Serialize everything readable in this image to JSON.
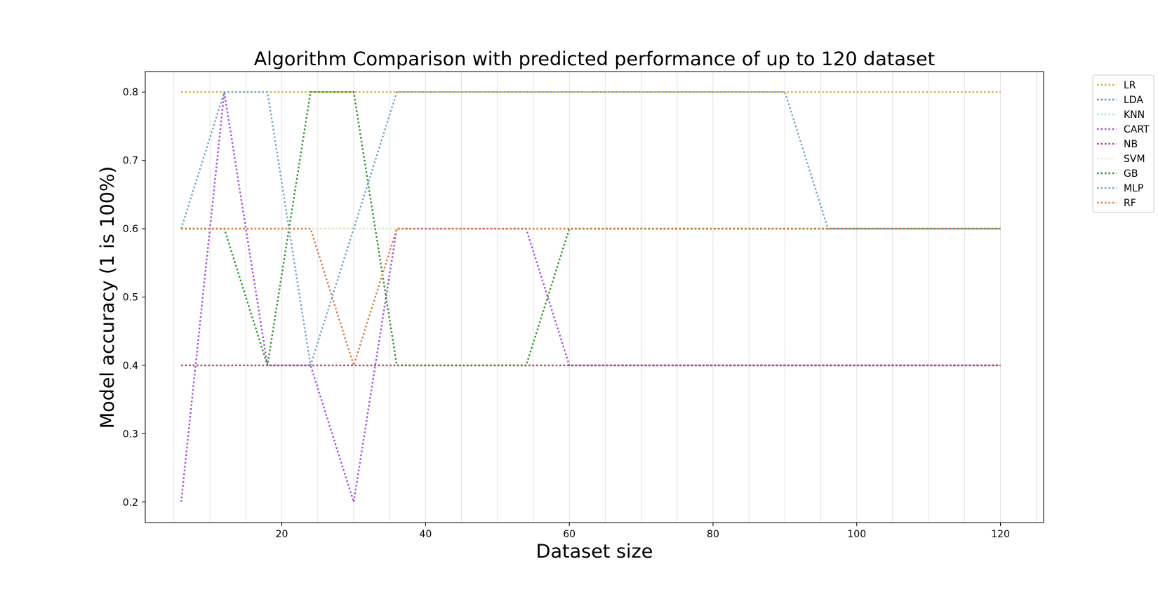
{
  "chart_data": {
    "type": "line",
    "title": "Algorithm Comparison with predicted performance of up to 120 dataset",
    "xlabel": "Dataset size",
    "ylabel": "Model accuracy (1 is 100%)",
    "xlim": [
      1,
      126
    ],
    "ylim": [
      0.17,
      0.83
    ],
    "xticks": [
      20,
      40,
      60,
      80,
      100,
      120
    ],
    "yticks": [
      0.2,
      0.3,
      0.4,
      0.5,
      0.6,
      0.7,
      0.8
    ],
    "vertical_grid_every": 5,
    "grid": "vertical",
    "legend_position": "outside-right",
    "line_style": "dotted",
    "x": [
      6,
      12,
      18,
      24,
      30,
      36,
      42,
      48,
      54,
      60,
      66,
      72,
      78,
      84,
      90,
      96,
      102,
      108,
      114,
      120
    ],
    "series": [
      {
        "name": "LR",
        "color": "#dcb12c",
        "values": [
          0.8,
          0.8,
          0.8,
          0.8,
          0.8,
          0.8,
          0.8,
          0.8,
          0.8,
          0.8,
          0.8,
          0.8,
          0.8,
          0.8,
          0.8,
          0.8,
          0.8,
          0.8,
          0.8,
          0.8
        ]
      },
      {
        "name": "LDA",
        "color": "#4f8fd6",
        "values": [
          0.6,
          0.6,
          0.6,
          0.6,
          0.6,
          0.6,
          0.6,
          0.6,
          0.6,
          0.6,
          0.6,
          0.6,
          0.6,
          0.6,
          0.6,
          0.6,
          0.6,
          0.6,
          0.6,
          0.6
        ]
      },
      {
        "name": "KNN",
        "color": "#8ff0e0",
        "values": [
          0.6,
          0.6,
          0.6,
          0.6,
          0.6,
          0.6,
          0.6,
          0.6,
          0.6,
          0.6,
          0.6,
          0.6,
          0.6,
          0.6,
          0.6,
          0.6,
          0.6,
          0.6,
          0.6,
          0.6
        ]
      },
      {
        "name": "CART",
        "color": "#b04be6",
        "values": [
          0.2,
          0.8,
          0.4,
          0.4,
          0.2,
          0.6,
          0.6,
          0.6,
          0.6,
          0.4,
          0.4,
          0.4,
          0.4,
          0.4,
          0.4,
          0.4,
          0.4,
          0.4,
          0.4,
          0.4
        ]
      },
      {
        "name": "NB",
        "color": "#b03a7a",
        "values": [
          0.4,
          0.4,
          0.4,
          0.4,
          0.4,
          0.4,
          0.4,
          0.4,
          0.4,
          0.4,
          0.4,
          0.4,
          0.4,
          0.4,
          0.4,
          0.4,
          0.4,
          0.4,
          0.4,
          0.4
        ]
      },
      {
        "name": "SVM",
        "color": "#eeeec8",
        "values": [
          0.6,
          0.6,
          0.6,
          0.6,
          0.6,
          0.6,
          0.6,
          0.6,
          0.6,
          0.6,
          0.6,
          0.6,
          0.6,
          0.6,
          0.6,
          0.6,
          0.6,
          0.6,
          0.6,
          0.6
        ]
      },
      {
        "name": "GB",
        "color": "#2a9a2a",
        "values": [
          0.6,
          0.6,
          0.4,
          0.8,
          0.8,
          0.4,
          0.4,
          0.4,
          0.4,
          0.6,
          0.6,
          0.6,
          0.6,
          0.6,
          0.6,
          0.6,
          0.6,
          0.6,
          0.6,
          0.6
        ]
      },
      {
        "name": "MLP",
        "color": "#6aabc8",
        "values": [
          0.6,
          0.8,
          0.8,
          0.4,
          0.6,
          0.8,
          0.8,
          0.8,
          0.8,
          0.8,
          0.8,
          0.8,
          0.8,
          0.8,
          0.8,
          0.6,
          0.6,
          0.6,
          0.6,
          0.6
        ]
      },
      {
        "name": "RF",
        "color": "#e07b39",
        "values": [
          0.6,
          0.6,
          0.6,
          0.6,
          0.4,
          0.6,
          0.6,
          0.6,
          0.6,
          0.6,
          0.6,
          0.6,
          0.6,
          0.6,
          0.6,
          0.6,
          0.6,
          0.6,
          0.6,
          0.6
        ]
      }
    ],
    "extra_lines": [
      {
        "color": "#f0a08c",
        "values": [
          0.4,
          0.4,
          0.4,
          0.4,
          0.4,
          0.4,
          0.4,
          0.4,
          0.4,
          0.4,
          0.4,
          0.4,
          0.4,
          0.4,
          0.4,
          0.4,
          0.4,
          0.4,
          0.4,
          0.4
        ]
      }
    ]
  }
}
